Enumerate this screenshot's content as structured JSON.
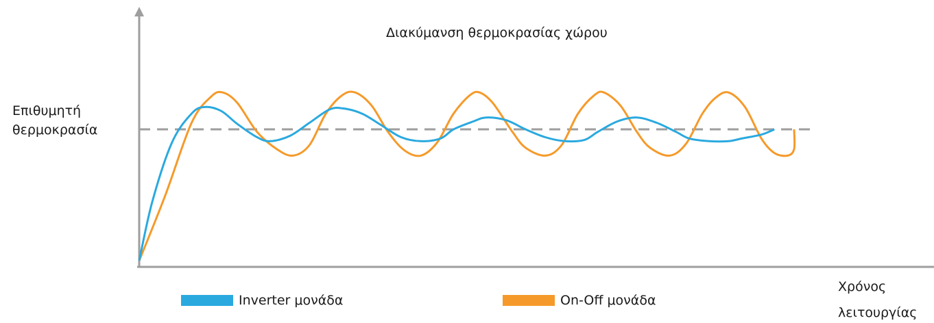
{
  "chart_data": {
    "type": "line",
    "title": "Διακύμανση θερμοκρασίας χώρου",
    "ylabel": [
      "Επιθυμητή",
      "θερμοκρασία"
    ],
    "xlabel": [
      "Χρόνος",
      "λειτουργίας"
    ],
    "reference_line": {
      "y": 1.0,
      "style": "dashed",
      "color": "#9e9e9e"
    },
    "ylim": [
      0,
      1.5
    ],
    "xlim": [
      0,
      100
    ],
    "series": [
      {
        "name": "Inverter μονάδα",
        "color": "#2aa9df",
        "points": [
          [
            0,
            0
          ],
          [
            2,
            0.45
          ],
          [
            5,
            0.9
          ],
          [
            8,
            1.12
          ],
          [
            10,
            1.17
          ],
          [
            12.5,
            1.14
          ],
          [
            15,
            1.04
          ],
          [
            18,
            0.94
          ],
          [
            20,
            0.91
          ],
          [
            23,
            0.95
          ],
          [
            26,
            1.05
          ],
          [
            29,
            1.15
          ],
          [
            31,
            1.16
          ],
          [
            34,
            1.12
          ],
          [
            37,
            1.03
          ],
          [
            40,
            0.94
          ],
          [
            43,
            0.91
          ],
          [
            46,
            0.93
          ],
          [
            48,
            1.0
          ],
          [
            51,
            1.06
          ],
          [
            53,
            1.09
          ],
          [
            56,
            1.07
          ],
          [
            59,
            1.0
          ],
          [
            62,
            0.94
          ],
          [
            65,
            0.91
          ],
          [
            68,
            0.92
          ],
          [
            70,
            0.98
          ],
          [
            73,
            1.06
          ],
          [
            76,
            1.09
          ],
          [
            79,
            1.05
          ],
          [
            82,
            0.98
          ],
          [
            84,
            0.93
          ],
          [
            87,
            0.91
          ],
          [
            90,
            0.91
          ],
          [
            92,
            0.93
          ],
          [
            95,
            0.96
          ],
          [
            97,
            1.0
          ]
        ]
      },
      {
        "name": "On-Off μονάδα",
        "color": "#f59a2a",
        "points": [
          [
            0,
            0
          ],
          [
            4,
            0.5
          ],
          [
            8,
            1.05
          ],
          [
            11,
            1.25
          ],
          [
            12.8,
            1.28
          ],
          [
            15,
            1.2
          ],
          [
            18,
            0.98
          ],
          [
            21,
            0.85
          ],
          [
            23.5,
            0.8
          ],
          [
            26,
            0.88
          ],
          [
            28.5,
            1.12
          ],
          [
            31,
            1.26
          ],
          [
            33,
            1.28
          ],
          [
            35.5,
            1.18
          ],
          [
            38,
            0.98
          ],
          [
            40.5,
            0.84
          ],
          [
            43,
            0.8
          ],
          [
            45.5,
            0.9
          ],
          [
            48,
            1.12
          ],
          [
            50.5,
            1.26
          ],
          [
            52,
            1.28
          ],
          [
            54,
            1.2
          ],
          [
            57,
            0.98
          ],
          [
            59,
            0.86
          ],
          [
            62,
            0.8
          ],
          [
            64.5,
            0.88
          ],
          [
            67,
            1.12
          ],
          [
            69.5,
            1.26
          ],
          [
            71,
            1.28
          ],
          [
            73.5,
            1.18
          ],
          [
            76,
            0.98
          ],
          [
            78,
            0.86
          ],
          [
            81,
            0.8
          ],
          [
            83.5,
            0.89
          ],
          [
            86,
            1.12
          ],
          [
            88,
            1.24
          ],
          [
            90,
            1.28
          ],
          [
            92.5,
            1.17
          ],
          [
            95,
            0.93
          ],
          [
            97,
            0.82
          ],
          [
            99,
            0.8
          ],
          [
            100,
            0.85
          ],
          [
            100,
            1.0
          ]
        ]
      }
    ],
    "grid": false,
    "legend_position": "bottom"
  }
}
